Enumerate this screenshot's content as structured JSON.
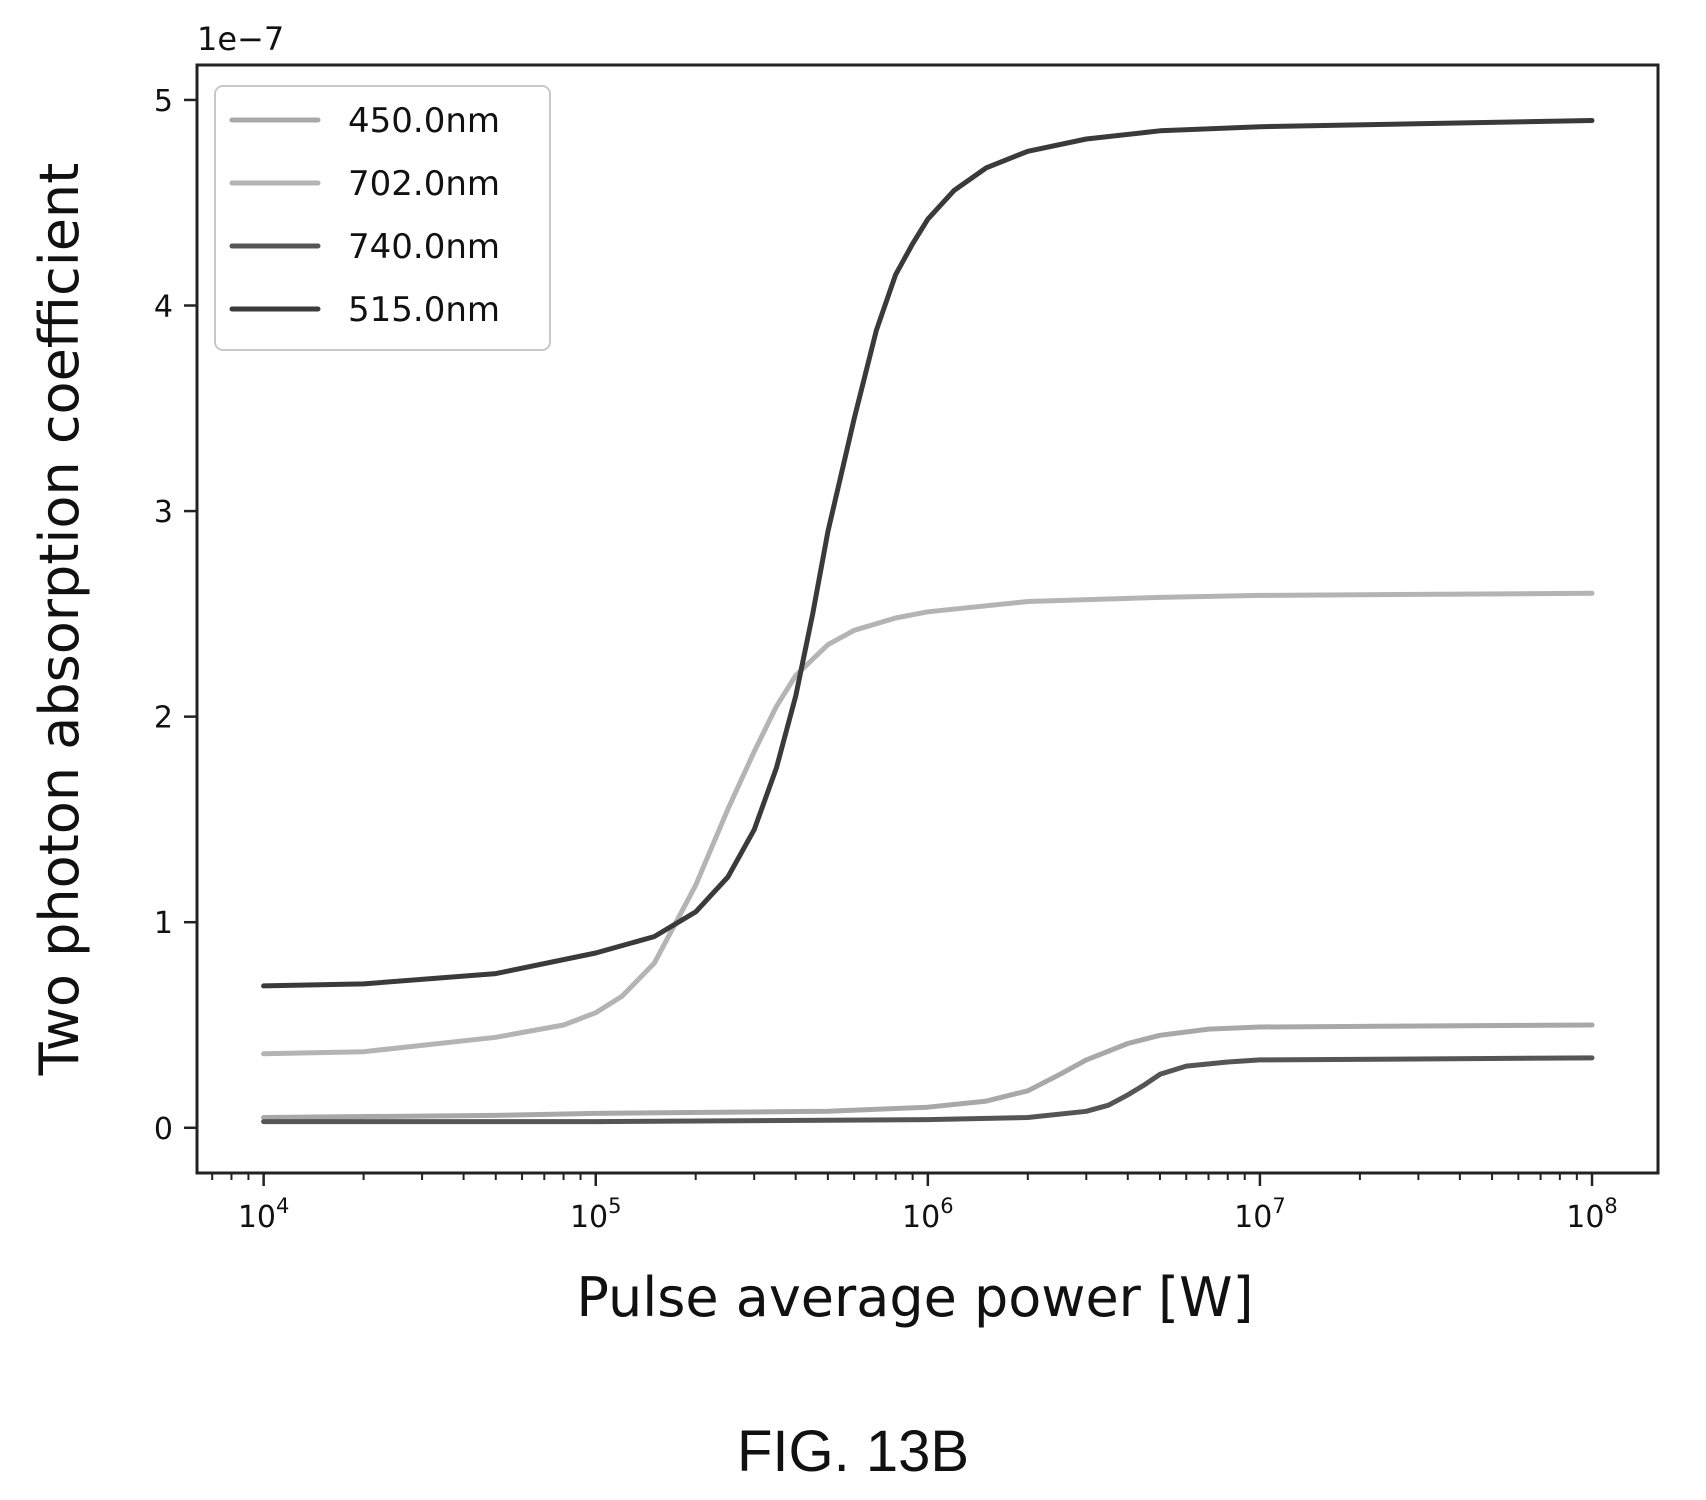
{
  "chart_data": {
    "type": "line",
    "xlabel": "Pulse average power [W]",
    "ylabel": "Two photon absorption coefficient",
    "y_offset_label": "1e−7",
    "xscale": "log",
    "xlim": [
      6300,
      158000000
    ],
    "ylim": [
      -0.22,
      5.17
    ],
    "x_ticks": [
      {
        "value": 10000,
        "base": "10",
        "exp": "4"
      },
      {
        "value": 100000,
        "base": "10",
        "exp": "5"
      },
      {
        "value": 1000000,
        "base": "10",
        "exp": "6"
      },
      {
        "value": 10000000,
        "base": "10",
        "exp": "7"
      },
      {
        "value": 100000000,
        "base": "10",
        "exp": "8"
      }
    ],
    "y_ticks": [
      {
        "value": 0,
        "label": "0"
      },
      {
        "value": 1,
        "label": "1"
      },
      {
        "value": 2,
        "label": "2"
      },
      {
        "value": 3,
        "label": "3"
      },
      {
        "value": 4,
        "label": "4"
      },
      {
        "value": 5,
        "label": "5"
      }
    ],
    "grid": false,
    "legend_position": "top-left",
    "series": [
      {
        "name": "450.0nm",
        "color": "#a8a8a8",
        "points": [
          [
            10000,
            0.05
          ],
          [
            50000,
            0.06
          ],
          [
            100000,
            0.07
          ],
          [
            500000,
            0.08
          ],
          [
            1000000,
            0.1
          ],
          [
            1500000,
            0.13
          ],
          [
            2000000,
            0.18
          ],
          [
            2500000,
            0.26
          ],
          [
            3000000,
            0.33
          ],
          [
            4000000,
            0.41
          ],
          [
            5000000,
            0.45
          ],
          [
            7000000,
            0.48
          ],
          [
            10000000,
            0.49
          ],
          [
            100000000,
            0.5
          ]
        ]
      },
      {
        "name": "702.0nm",
        "color": "#b4b4b4",
        "points": [
          [
            10000,
            0.36
          ],
          [
            20000,
            0.37
          ],
          [
            50000,
            0.44
          ],
          [
            80000,
            0.5
          ],
          [
            100000,
            0.56
          ],
          [
            120000,
            0.64
          ],
          [
            150000,
            0.8
          ],
          [
            200000,
            1.18
          ],
          [
            250000,
            1.55
          ],
          [
            300000,
            1.83
          ],
          [
            350000,
            2.05
          ],
          [
            400000,
            2.2
          ],
          [
            500000,
            2.35
          ],
          [
            600000,
            2.42
          ],
          [
            800000,
            2.48
          ],
          [
            1000000,
            2.51
          ],
          [
            2000000,
            2.56
          ],
          [
            5000000,
            2.58
          ],
          [
            10000000,
            2.59
          ],
          [
            100000000,
            2.6
          ]
        ]
      },
      {
        "name": "740.0nm",
        "color": "#555555",
        "points": [
          [
            10000,
            0.03
          ],
          [
            100000,
            0.03
          ],
          [
            1000000,
            0.04
          ],
          [
            2000000,
            0.05
          ],
          [
            3000000,
            0.08
          ],
          [
            3500000,
            0.11
          ],
          [
            4000000,
            0.16
          ],
          [
            4500000,
            0.21
          ],
          [
            5000000,
            0.26
          ],
          [
            6000000,
            0.3
          ],
          [
            8000000,
            0.32
          ],
          [
            10000000,
            0.33
          ],
          [
            100000000,
            0.34
          ]
        ]
      },
      {
        "name": "515.0nm",
        "color": "#3a3a3a",
        "points": [
          [
            10000,
            0.69
          ],
          [
            20000,
            0.7
          ],
          [
            50000,
            0.75
          ],
          [
            100000,
            0.85
          ],
          [
            150000,
            0.93
          ],
          [
            200000,
            1.05
          ],
          [
            250000,
            1.22
          ],
          [
            300000,
            1.45
          ],
          [
            350000,
            1.75
          ],
          [
            400000,
            2.1
          ],
          [
            450000,
            2.5
          ],
          [
            500000,
            2.9
          ],
          [
            600000,
            3.45
          ],
          [
            700000,
            3.88
          ],
          [
            800000,
            4.15
          ],
          [
            900000,
            4.3
          ],
          [
            1000000,
            4.42
          ],
          [
            1200000,
            4.56
          ],
          [
            1500000,
            4.67
          ],
          [
            2000000,
            4.75
          ],
          [
            3000000,
            4.81
          ],
          [
            5000000,
            4.85
          ],
          [
            10000000,
            4.87
          ],
          [
            100000000,
            4.9
          ]
        ]
      }
    ]
  },
  "caption": "FIG. 13B"
}
